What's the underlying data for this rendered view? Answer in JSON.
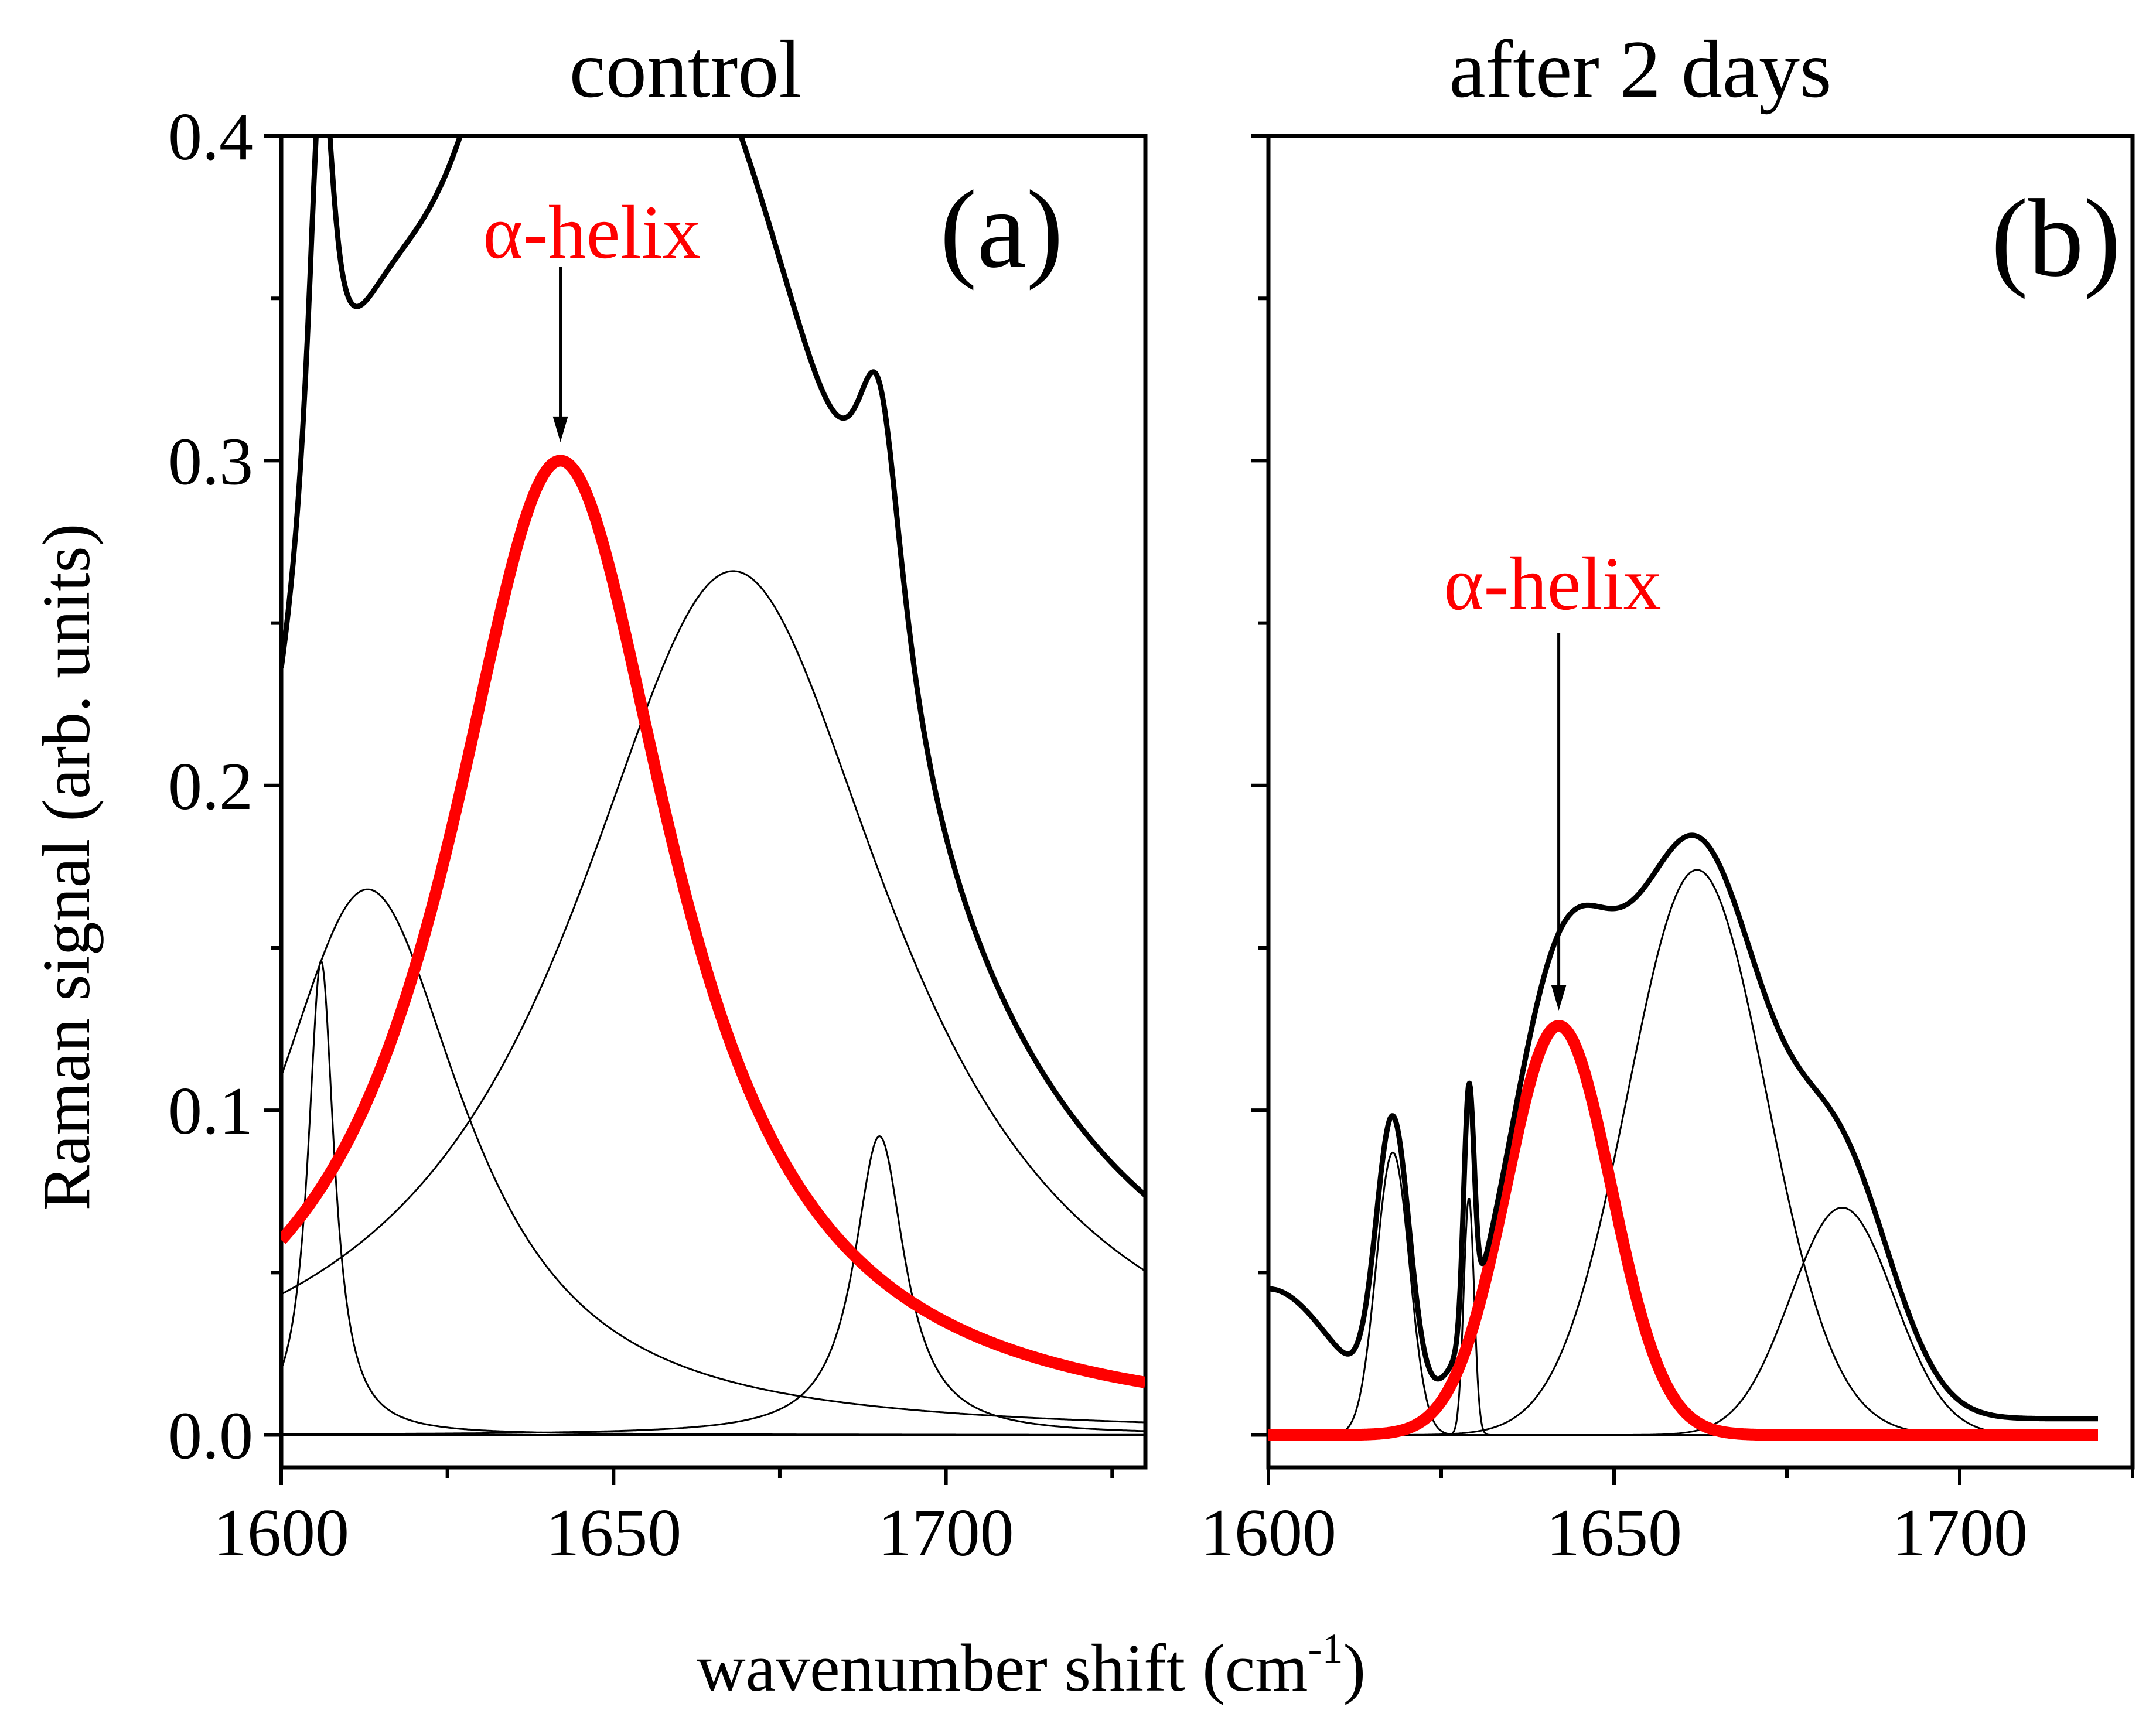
{
  "chart_data": [
    {
      "type": "line",
      "panel": "a",
      "title": "control",
      "panel_label": "(a)",
      "ylabel": "Raman signal (arb. units)",
      "xlabel": "wavenumber shift (cm-1)",
      "xlim": [
        1600,
        1730
      ],
      "ylim": [
        -0.01,
        0.4
      ],
      "x_ticks": [
        1600,
        1650,
        1700
      ],
      "x_tick_labels": [
        "1600",
        "1650",
        "1700"
      ],
      "y_ticks": [
        0.0,
        0.1,
        0.2,
        0.3,
        0.4
      ],
      "y_tick_labels": [
        "0.0",
        "0.1",
        "0.2",
        "0.3",
        "0.4"
      ],
      "annotation": {
        "text": "α-helix",
        "color": "#ff0000",
        "points_to": [
          1642,
          0.301
        ]
      },
      "x_start": 1600,
      "x_end": 1730,
      "total_baseline": 0.002,
      "series": [
        {
          "name": "total spectrum",
          "color": "#000000",
          "role": "total"
        },
        {
          "name": "α-helix component",
          "color": "#ff0000",
          "role": "component",
          "shape": "lorentzian",
          "center": 1642,
          "amplitude": 0.3,
          "width": 21
        },
        {
          "name": "component 1606",
          "color": "#000000",
          "role": "component",
          "shape": "lorentzian",
          "center": 1606,
          "amplitude": 0.146,
          "width": 2.4
        },
        {
          "name": "component 1613",
          "color": "#000000",
          "role": "component",
          "shape": "lorentzian",
          "center": 1613,
          "amplitude": 0.168,
          "width": 18
        },
        {
          "name": "component 1668",
          "color": "#000000",
          "role": "component",
          "shape": "lorentzian",
          "center": 1668,
          "amplitude": 0.266,
          "width": 30
        },
        {
          "name": "component 1690",
          "color": "#000000",
          "role": "component",
          "shape": "lorentzian",
          "center": 1690,
          "amplitude": 0.092,
          "width": 4.6
        }
      ]
    },
    {
      "type": "line",
      "panel": "b",
      "title": "after 2 days",
      "panel_label": "(b)",
      "xlabel": "wavenumber shift (cm-1)",
      "xlim": [
        1600,
        1725
      ],
      "ylim": [
        -0.01,
        0.4
      ],
      "x_ticks": [
        1600,
        1650,
        1700
      ],
      "x_tick_labels": [
        "1600",
        "1650",
        "1700"
      ],
      "y_ticks": [
        0.0,
        0.1,
        0.2,
        0.3,
        0.4
      ],
      "annotation": {
        "text": "α-helix",
        "color": "#ff0000",
        "points_to": [
          1642,
          0.126
        ]
      },
      "x_start": 1600,
      "x_end": 1720,
      "total_baseline": 0.005,
      "series": [
        {
          "name": "total spectrum",
          "color": "#000000",
          "role": "total"
        },
        {
          "name": "α-helix component",
          "color": "#ff0000",
          "role": "component",
          "shape": "gaussian",
          "center": 1642,
          "amplitude": 0.126,
          "width": 7.6
        },
        {
          "name": "component 1618",
          "color": "#000000",
          "role": "component",
          "shape": "gaussian",
          "center": 1618,
          "amplitude": 0.087,
          "width": 2.4
        },
        {
          "name": "component 1629",
          "color": "#000000",
          "role": "component",
          "shape": "gaussian",
          "center": 1629,
          "amplitude": 0.073,
          "width": 0.75
        },
        {
          "name": "component 1662",
          "color": "#000000",
          "role": "component",
          "shape": "gaussian",
          "center": 1662,
          "amplitude": 0.174,
          "width": 10
        },
        {
          "name": "component 1683",
          "color": "#000000",
          "role": "component",
          "shape": "gaussian",
          "center": 1683,
          "amplitude": 0.07,
          "width": 7.5
        },
        {
          "name": "broad background",
          "color": "#000000",
          "role": "hidden",
          "shape": "gaussian",
          "center": 1600,
          "amplitude": 0.04,
          "width": 9
        }
      ]
    }
  ],
  "labels": {
    "x_axis_main": "wavenumber shift (cm",
    "x_axis_sup": "-1",
    "x_axis_close": ")"
  }
}
